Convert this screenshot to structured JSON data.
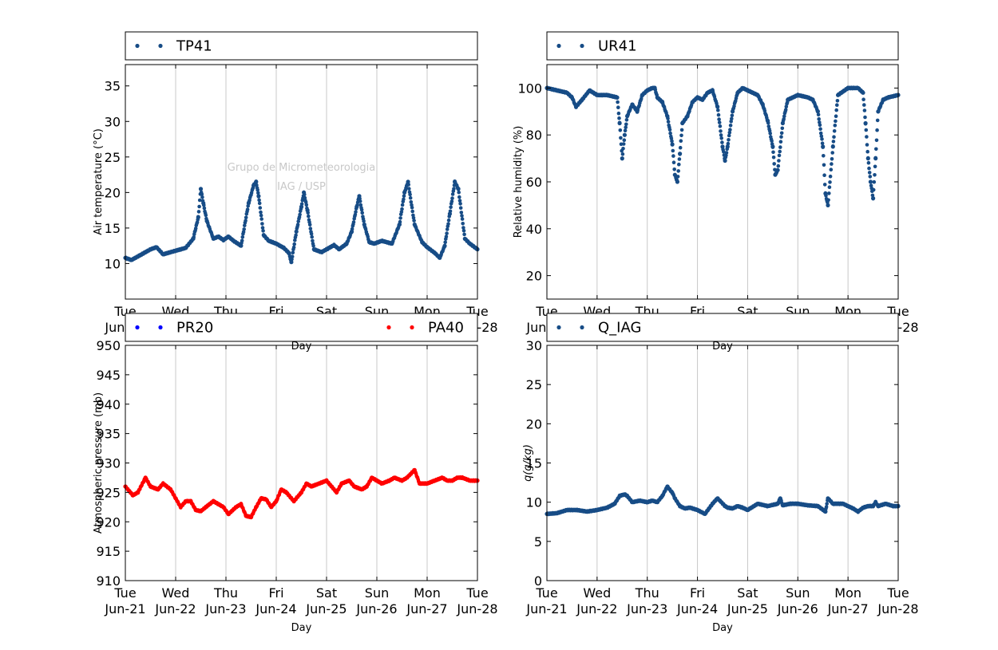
{
  "chart_data": [
    {
      "type": "scatter",
      "panel": "top-left",
      "ylabel": "Air temperature (°C)",
      "xlabel": "Day",
      "ylim": [
        5,
        38
      ],
      "yticks": [
        10,
        15,
        20,
        25,
        30,
        35
      ],
      "xlim": [
        0,
        7
      ],
      "grid": "vertical",
      "legend_position": "top (above plot)",
      "watermark": [
        "Grupo de Micrometeorologia",
        "IAG / USP"
      ],
      "series": [
        {
          "name": "TP41",
          "color": "#174c86",
          "x": [
            0,
            0.12,
            0.3,
            0.5,
            0.62,
            0.75,
            0.9,
            1.0,
            1.2,
            1.35,
            1.45,
            1.5,
            1.55,
            1.62,
            1.75,
            1.85,
            1.95,
            2.05,
            2.15,
            2.3,
            2.45,
            2.55,
            2.6,
            2.65,
            2.75,
            2.85,
            3.0,
            3.15,
            3.25,
            3.3,
            3.4,
            3.5,
            3.55,
            3.62,
            3.75,
            3.9,
            4.0,
            4.15,
            4.25,
            4.4,
            4.5,
            4.6,
            4.65,
            4.75,
            4.85,
            4.95,
            5.1,
            5.3,
            5.45,
            5.55,
            5.62,
            5.75,
            5.9,
            6.0,
            6.15,
            6.25,
            6.35,
            6.45,
            6.55,
            6.62,
            6.75,
            6.85,
            7.0
          ],
          "y": [
            10.8,
            10.5,
            11.2,
            12.0,
            12.3,
            11.3,
            11.6,
            11.8,
            12.2,
            13.5,
            16.5,
            20.5,
            18.5,
            16.0,
            13.5,
            13.8,
            13.3,
            13.8,
            13.2,
            12.5,
            18.5,
            21.0,
            21.5,
            19.5,
            14.0,
            13.2,
            12.8,
            12.2,
            11.5,
            10.2,
            14.5,
            18.0,
            20.0,
            17.5,
            12.0,
            11.6,
            12.0,
            12.6,
            12.0,
            12.8,
            14.5,
            18.0,
            19.5,
            15.5,
            13.0,
            12.8,
            13.2,
            12.8,
            15.5,
            20.0,
            21.5,
            15.5,
            13.0,
            12.3,
            11.5,
            10.8,
            12.5,
            17.0,
            21.5,
            20.5,
            13.5,
            12.8,
            12.0
          ]
        }
      ]
    },
    {
      "type": "scatter",
      "panel": "top-right",
      "ylabel": "Relative humidity (%)",
      "xlabel": "Day",
      "ylim": [
        10,
        110
      ],
      "yticks": [
        20,
        40,
        60,
        80,
        100
      ],
      "xlim": [
        0,
        7
      ],
      "grid": "vertical",
      "legend_position": "top (above plot)",
      "series": [
        {
          "name": "UR41",
          "color": "#174c86",
          "x": [
            0,
            0.2,
            0.4,
            0.5,
            0.58,
            0.7,
            0.85,
            1.0,
            1.2,
            1.4,
            1.45,
            1.5,
            1.55,
            1.6,
            1.7,
            1.8,
            1.9,
            2.0,
            2.1,
            2.15,
            2.2,
            2.3,
            2.4,
            2.5,
            2.55,
            2.6,
            2.65,
            2.7,
            2.8,
            2.9,
            3.0,
            3.1,
            3.2,
            3.3,
            3.4,
            3.5,
            3.55,
            3.6,
            3.7,
            3.8,
            3.9,
            4.0,
            4.1,
            4.2,
            4.3,
            4.4,
            4.5,
            4.55,
            4.6,
            4.7,
            4.8,
            5.0,
            5.2,
            5.3,
            5.4,
            5.5,
            5.55,
            5.6,
            5.7,
            5.8,
            6.0,
            6.1,
            6.2,
            6.3,
            6.35,
            6.4,
            6.45,
            6.5,
            6.55,
            6.6,
            6.7,
            6.8,
            7.0
          ],
          "y": [
            100,
            99,
            98,
            96,
            92,
            95,
            99,
            97,
            97,
            96,
            85,
            70,
            80,
            88,
            93,
            90,
            97,
            99,
            100,
            100,
            96,
            94,
            88,
            76,
            63,
            60,
            72,
            85,
            88,
            94,
            96,
            95,
            98,
            99,
            92,
            75,
            69,
            75,
            90,
            98,
            100,
            99,
            98,
            97,
            93,
            86,
            75,
            63,
            65,
            85,
            95,
            97,
            96,
            95,
            90,
            75,
            55,
            50,
            75,
            97,
            100,
            100,
            100,
            98,
            85,
            70,
            60,
            53,
            70,
            90,
            95,
            96,
            97
          ]
        }
      ]
    },
    {
      "type": "scatter",
      "panel": "bottom-left",
      "ylabel": "Atmospheric pressure (mb)",
      "xlabel": "Day",
      "ylim": [
        910,
        950
      ],
      "yticks": [
        910,
        915,
        920,
        925,
        930,
        935,
        940,
        945,
        950
      ],
      "xlim": [
        0,
        7
      ],
      "xticks_day": [
        "Tue",
        "Wed",
        "Thu",
        "Fri",
        "Sat",
        "Sun",
        "Mon",
        "Tue"
      ],
      "xticks_date": [
        "Jun-21",
        "Jun-22",
        "Jun-23",
        "Jun-24",
        "Jun-25",
        "Jun-26",
        "Jun-27",
        "Jun-28"
      ],
      "grid": "vertical",
      "legend_position": "top (above plot)",
      "series": [
        {
          "name": "PR20",
          "color": "#0000ff",
          "x": [],
          "y": []
        },
        {
          "name": "PA40",
          "color": "#ff0000",
          "x": [
            0,
            0.15,
            0.25,
            0.4,
            0.5,
            0.65,
            0.75,
            0.9,
            1.0,
            1.1,
            1.2,
            1.3,
            1.4,
            1.5,
            1.6,
            1.75,
            1.85,
            1.95,
            2.05,
            2.2,
            2.3,
            2.4,
            2.5,
            2.6,
            2.7,
            2.8,
            2.9,
            3.0,
            3.1,
            3.2,
            3.35,
            3.5,
            3.6,
            3.7,
            3.85,
            4.0,
            4.1,
            4.2,
            4.3,
            4.45,
            4.55,
            4.7,
            4.8,
            4.9,
            5.0,
            5.1,
            5.25,
            5.35,
            5.5,
            5.6,
            5.75,
            5.85,
            6.0,
            6.15,
            6.3,
            6.4,
            6.5,
            6.6,
            6.7,
            6.85,
            7.0
          ],
          "y": [
            926,
            924.5,
            925,
            927.5,
            926,
            925.5,
            926.5,
            925.5,
            924,
            922.5,
            923.5,
            923.5,
            922,
            921.8,
            922.5,
            923.5,
            923,
            922.5,
            921.3,
            922.5,
            923,
            921,
            920.8,
            922.5,
            924,
            923.8,
            922.5,
            923.5,
            925.5,
            925,
            923.5,
            925,
            926.5,
            926,
            926.5,
            927,
            926,
            925,
            926.5,
            927,
            926,
            925.5,
            926,
            927.5,
            927,
            926.5,
            927,
            927.5,
            927,
            927.5,
            928.8,
            926.5,
            926.5,
            927,
            927.5,
            927,
            927,
            927.5,
            927.5,
            927,
            927
          ]
        }
      ]
    },
    {
      "type": "scatter",
      "panel": "bottom-right",
      "ylabel": "q(g/kg)",
      "xlabel": "Day",
      "ylim": [
        0,
        30
      ],
      "yticks": [
        0,
        5,
        10,
        15,
        20,
        25,
        30
      ],
      "xlim": [
        0,
        7
      ],
      "xticks_day": [
        "Tue",
        "Wed",
        "Thu",
        "Fri",
        "Sat",
        "Sun",
        "Mon",
        "Tue"
      ],
      "xticks_date": [
        "Jun-21",
        "Jun-22",
        "Jun-23",
        "Jun-24",
        "Jun-25",
        "Jun-26",
        "Jun-27",
        "Jun-28"
      ],
      "grid": "vertical",
      "legend_position": "top (above plot)",
      "series": [
        {
          "name": "Q_IAG",
          "color": "#174c86",
          "x": [
            0,
            0.2,
            0.4,
            0.6,
            0.8,
            1.0,
            1.2,
            1.35,
            1.45,
            1.55,
            1.6,
            1.7,
            1.85,
            2.0,
            2.1,
            2.2,
            2.3,
            2.4,
            2.5,
            2.55,
            2.65,
            2.75,
            2.85,
            3.0,
            3.15,
            3.3,
            3.4,
            3.55,
            3.6,
            3.7,
            3.8,
            3.9,
            4.0,
            4.2,
            4.4,
            4.6,
            4.65,
            4.7,
            4.85,
            5.0,
            5.2,
            5.4,
            5.55,
            5.6,
            5.7,
            5.9,
            6.0,
            6.1,
            6.2,
            6.3,
            6.4,
            6.5,
            6.55,
            6.6,
            6.75,
            6.9,
            7.0
          ],
          "y": [
            8.5,
            8.6,
            9.0,
            9.0,
            8.8,
            9.0,
            9.3,
            9.8,
            10.8,
            11.0,
            10.8,
            10.0,
            10.2,
            10.0,
            10.2,
            10.0,
            10.8,
            12.0,
            11.2,
            10.5,
            9.5,
            9.2,
            9.3,
            9.0,
            8.5,
            9.8,
            10.5,
            9.5,
            9.3,
            9.2,
            9.5,
            9.3,
            9.0,
            9.8,
            9.5,
            9.8,
            10.5,
            9.6,
            9.8,
            9.8,
            9.6,
            9.5,
            8.8,
            10.5,
            9.8,
            9.8,
            9.5,
            9.2,
            8.8,
            9.3,
            9.5,
            9.5,
            10.0,
            9.5,
            9.8,
            9.5,
            9.5
          ]
        }
      ]
    }
  ]
}
